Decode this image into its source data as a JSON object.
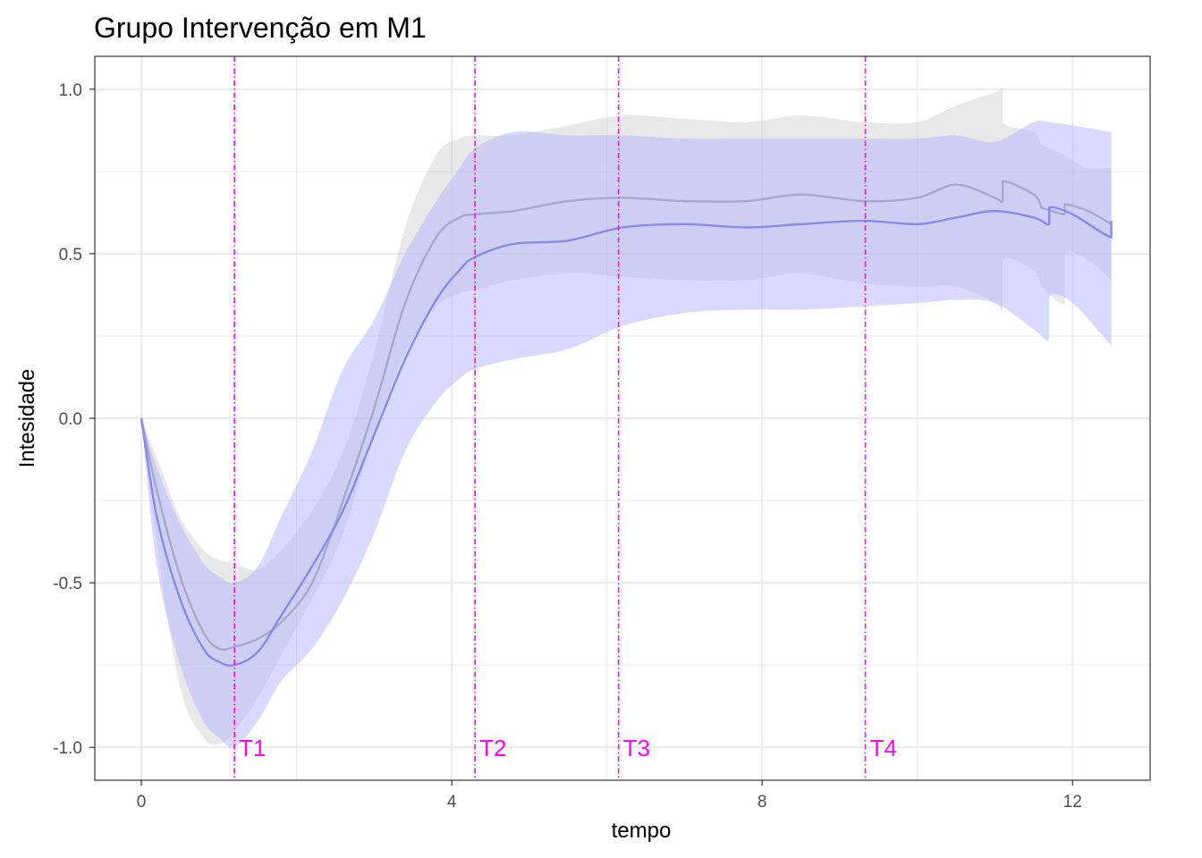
{
  "chart_data": {
    "type": "line",
    "title": "Grupo Intervenção em M1",
    "xlabel": "tempo",
    "ylabel": "Intesidade",
    "xlim": [
      -0.6,
      13.0
    ],
    "ylim": [
      -1.1,
      1.1
    ],
    "x_ticks": [
      0,
      4,
      8,
      12
    ],
    "x_tick_labels": [
      "0",
      "4",
      "8",
      "12"
    ],
    "y_ticks": [
      -1.0,
      -0.5,
      0.0,
      0.5,
      1.0
    ],
    "y_tick_labels": [
      "-1.0",
      "-0.5",
      "0.0",
      "0.5",
      "1.0"
    ],
    "grid": true,
    "colors": {
      "gray_band": "#bdbdbd",
      "gray_line": "#a8a8c8",
      "blue_band": "#b3b3ff",
      "blue_line": "#8888ee",
      "marker": "#ff00ff",
      "grid": "#ebebeb",
      "panel_border": "#333333"
    },
    "vertical_markers": [
      {
        "x": 1.2,
        "label": "T1"
      },
      {
        "x": 4.3,
        "label": "T2"
      },
      {
        "x": 6.15,
        "label": "T3"
      },
      {
        "x": 9.33,
        "label": "T4"
      }
    ],
    "series": [
      {
        "style": "gray",
        "x": [
          0,
          0.2,
          0.5,
          0.8,
          1.0,
          1.2,
          1.5,
          1.8,
          2.2,
          2.6,
          3.0,
          3.4,
          3.8,
          4.1,
          4.3,
          4.8,
          5.5,
          6.2,
          7.0,
          7.8,
          8.5,
          9.3,
          10.0,
          10.5,
          11.0,
          11.1,
          11.1,
          11.5,
          11.6,
          11.6,
          11.9,
          11.9,
          12.2,
          12.5
        ],
        "y": [
          0,
          -0.22,
          -0.48,
          -0.65,
          -0.7,
          -0.695,
          -0.67,
          -0.62,
          -0.5,
          -0.25,
          0.03,
          0.35,
          0.55,
          0.61,
          0.62,
          0.63,
          0.66,
          0.67,
          0.66,
          0.66,
          0.68,
          0.66,
          0.67,
          0.71,
          0.67,
          0.66,
          0.72,
          0.68,
          0.64,
          0.64,
          0.62,
          0.65,
          0.63,
          0.59
        ],
        "lower": [
          0,
          -0.38,
          -0.82,
          -0.97,
          -0.99,
          -0.95,
          -0.85,
          -0.72,
          -0.55,
          -0.35,
          -0.05,
          0.2,
          0.34,
          0.38,
          0.39,
          0.42,
          0.44,
          0.43,
          0.42,
          0.42,
          0.44,
          0.41,
          0.4,
          0.4,
          0.35,
          0.33,
          0.48,
          0.45,
          0.4,
          0.4,
          0.35,
          0.5,
          0.48,
          0.42
        ],
        "upper": [
          0,
          -0.12,
          -0.3,
          -0.4,
          -0.43,
          -0.44,
          -0.46,
          -0.4,
          -0.28,
          -0.1,
          0.2,
          0.58,
          0.8,
          0.85,
          0.86,
          0.86,
          0.89,
          0.92,
          0.91,
          0.9,
          0.92,
          0.9,
          0.9,
          0.95,
          0.99,
          1.0,
          0.9,
          0.87,
          0.83,
          0.83,
          0.8,
          0.8,
          0.76,
          0.76
        ]
      },
      {
        "style": "blue",
        "x": [
          0,
          0.2,
          0.5,
          0.8,
          1.0,
          1.2,
          1.5,
          1.8,
          2.2,
          2.6,
          3.0,
          3.4,
          3.8,
          4.1,
          4.3,
          4.8,
          5.5,
          6.2,
          7.0,
          7.8,
          8.5,
          9.3,
          10.0,
          10.5,
          11.0,
          11.5,
          11.7,
          11.7,
          12.0,
          12.5,
          12.5
        ],
        "y": [
          0,
          -0.3,
          -0.55,
          -0.7,
          -0.74,
          -0.75,
          -0.71,
          -0.6,
          -0.45,
          -0.28,
          -0.05,
          0.18,
          0.36,
          0.45,
          0.49,
          0.53,
          0.54,
          0.58,
          0.59,
          0.58,
          0.59,
          0.6,
          0.59,
          0.61,
          0.63,
          0.61,
          0.59,
          0.64,
          0.62,
          0.55,
          0.6
        ],
        "lower": [
          0,
          -0.45,
          -0.75,
          -0.92,
          -0.97,
          -1.0,
          -0.92,
          -0.8,
          -0.7,
          -0.55,
          -0.35,
          -0.1,
          0.05,
          0.12,
          0.15,
          0.18,
          0.21,
          0.28,
          0.32,
          0.33,
          0.33,
          0.34,
          0.35,
          0.36,
          0.35,
          0.27,
          0.24,
          0.37,
          0.35,
          0.22,
          0.22
        ],
        "upper": [
          0,
          -0.15,
          -0.32,
          -0.44,
          -0.48,
          -0.5,
          -0.45,
          -0.3,
          -0.1,
          0.15,
          0.3,
          0.5,
          0.66,
          0.76,
          0.82,
          0.87,
          0.86,
          0.86,
          0.85,
          0.85,
          0.85,
          0.85,
          0.85,
          0.86,
          0.84,
          0.9,
          0.9,
          0.9,
          0.89,
          0.87,
          0.87
        ]
      }
    ]
  }
}
